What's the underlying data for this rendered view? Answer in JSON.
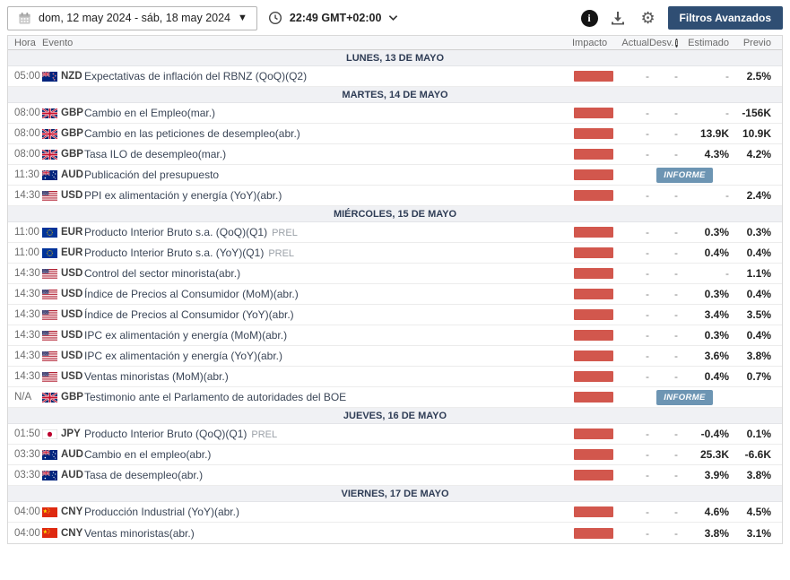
{
  "toolbar": {
    "date_range": "dom, 12 may 2024 -  sáb, 18 may 2024",
    "time": "22:49 GMT+02:00",
    "filters_button": "Filtros Avanzados"
  },
  "icons": {
    "calendar": "calendar-icon",
    "dropdown_glyph": "▼",
    "clock": "clock-icon",
    "chevron_down": "chevron-down-icon",
    "info_glyph": "i",
    "download": "download-icon",
    "gear_glyph": "⚙",
    "desv_info_glyph": "i"
  },
  "colors": {
    "impact_bar": "#d2574d",
    "informe_badge": "#6d95b3",
    "filters_button_bg": "#2f4e73",
    "day_header_bg": "#f0f1f4"
  },
  "table": {
    "headers": {
      "hora": "Hora",
      "evento": "Evento",
      "impacto": "Impacto",
      "actual": "Actual",
      "desv": "Desv.",
      "estimado": "Estimado",
      "previo": "Previo"
    }
  },
  "informe_label": "INFORME",
  "days": [
    {
      "label": "LUNES, 13 DE MAYO",
      "events": [
        {
          "time": "05:00",
          "currency": "NZD",
          "flag": "nzd",
          "name": "Expectativas de inflación del RBNZ (QoQ)(Q2)",
          "actual": "-",
          "desv": "-",
          "estimado": "-",
          "previo": "2.5%"
        }
      ]
    },
    {
      "label": "MARTES, 14 DE MAYO",
      "events": [
        {
          "time": "08:00",
          "currency": "GBP",
          "flag": "gbp",
          "name": "Cambio en el Empleo(mar.)",
          "actual": "-",
          "desv": "-",
          "estimado": "-",
          "previo": "-156K"
        },
        {
          "time": "08:00",
          "currency": "GBP",
          "flag": "gbp",
          "name": "Cambio en las peticiones de desempleo(abr.)",
          "actual": "-",
          "desv": "-",
          "estimado": "13.9K",
          "previo": "10.9K"
        },
        {
          "time": "08:00",
          "currency": "GBP",
          "flag": "gbp",
          "name": "Tasa ILO de desempleo(mar.)",
          "actual": "-",
          "desv": "-",
          "estimado": "4.3%",
          "previo": "4.2%"
        },
        {
          "time": "11:30",
          "currency": "AUD",
          "flag": "aud",
          "name": "Publicación del presupuesto",
          "report": true
        },
        {
          "time": "14:30",
          "currency": "USD",
          "flag": "usd",
          "name": "PPI ex alimentación y energía (YoY)(abr.)",
          "actual": "-",
          "desv": "-",
          "estimado": "-",
          "previo": "2.4%"
        }
      ]
    },
    {
      "label": "MIÉRCOLES, 15 DE MAYO",
      "events": [
        {
          "time": "11:00",
          "currency": "EUR",
          "flag": "eur",
          "name": "Producto Interior Bruto s.a. (QoQ)(Q1)",
          "suffix": "PREL",
          "actual": "-",
          "desv": "-",
          "estimado": "0.3%",
          "previo": "0.3%"
        },
        {
          "time": "11:00",
          "currency": "EUR",
          "flag": "eur",
          "name": "Producto Interior Bruto s.a. (YoY)(Q1)",
          "suffix": "PREL",
          "actual": "-",
          "desv": "-",
          "estimado": "0.4%",
          "previo": "0.4%"
        },
        {
          "time": "14:30",
          "currency": "USD",
          "flag": "usd",
          "name": "Control del sector minorista(abr.)",
          "actual": "-",
          "desv": "-",
          "estimado": "-",
          "previo": "1.1%"
        },
        {
          "time": "14:30",
          "currency": "USD",
          "flag": "usd",
          "name": "Índice de Precios al Consumidor (MoM)(abr.)",
          "actual": "-",
          "desv": "-",
          "estimado": "0.3%",
          "previo": "0.4%"
        },
        {
          "time": "14:30",
          "currency": "USD",
          "flag": "usd",
          "name": "Índice de Precios al Consumidor (YoY)(abr.)",
          "actual": "-",
          "desv": "-",
          "estimado": "3.4%",
          "previo": "3.5%"
        },
        {
          "time": "14:30",
          "currency": "USD",
          "flag": "usd",
          "name": "IPC ex alimentación y energía (MoM)(abr.)",
          "actual": "-",
          "desv": "-",
          "estimado": "0.3%",
          "previo": "0.4%"
        },
        {
          "time": "14:30",
          "currency": "USD",
          "flag": "usd",
          "name": "IPC ex alimentación y energía (YoY)(abr.)",
          "actual": "-",
          "desv": "-",
          "estimado": "3.6%",
          "previo": "3.8%"
        },
        {
          "time": "14:30",
          "currency": "USD",
          "flag": "usd",
          "name": "Ventas minoristas (MoM)(abr.)",
          "actual": "-",
          "desv": "-",
          "estimado": "0.4%",
          "previo": "0.7%"
        },
        {
          "time": "N/A",
          "currency": "GBP",
          "flag": "gbp",
          "name": "Testimonio ante el Parlamento de autoridades del BOE",
          "report": true
        }
      ]
    },
    {
      "label": "JUEVES, 16 DE MAYO",
      "events": [
        {
          "time": "01:50",
          "currency": "JPY",
          "flag": "jpy",
          "name": "Producto Interior Bruto (QoQ)(Q1)",
          "suffix": "PREL",
          "actual": "-",
          "desv": "-",
          "estimado": "-0.4%",
          "previo": "0.1%"
        },
        {
          "time": "03:30",
          "currency": "AUD",
          "flag": "aud",
          "name": "Cambio en el empleo(abr.)",
          "actual": "-",
          "desv": "-",
          "estimado": "25.3K",
          "previo": "-6.6K"
        },
        {
          "time": "03:30",
          "currency": "AUD",
          "flag": "aud",
          "name": "Tasa de desempleo(abr.)",
          "actual": "-",
          "desv": "-",
          "estimado": "3.9%",
          "previo": "3.8%"
        }
      ]
    },
    {
      "label": "VIERNES, 17 DE MAYO",
      "events": [
        {
          "time": "04:00",
          "currency": "CNY",
          "flag": "cny",
          "name": "Producción Industrial (YoY)(abr.)",
          "actual": "-",
          "desv": "-",
          "estimado": "4.6%",
          "previo": "4.5%"
        },
        {
          "time": "04:00",
          "currency": "CNY",
          "flag": "cny",
          "name": "Ventas minoristas(abr.)",
          "actual": "-",
          "desv": "-",
          "estimado": "3.8%",
          "previo": "3.1%"
        }
      ]
    }
  ]
}
